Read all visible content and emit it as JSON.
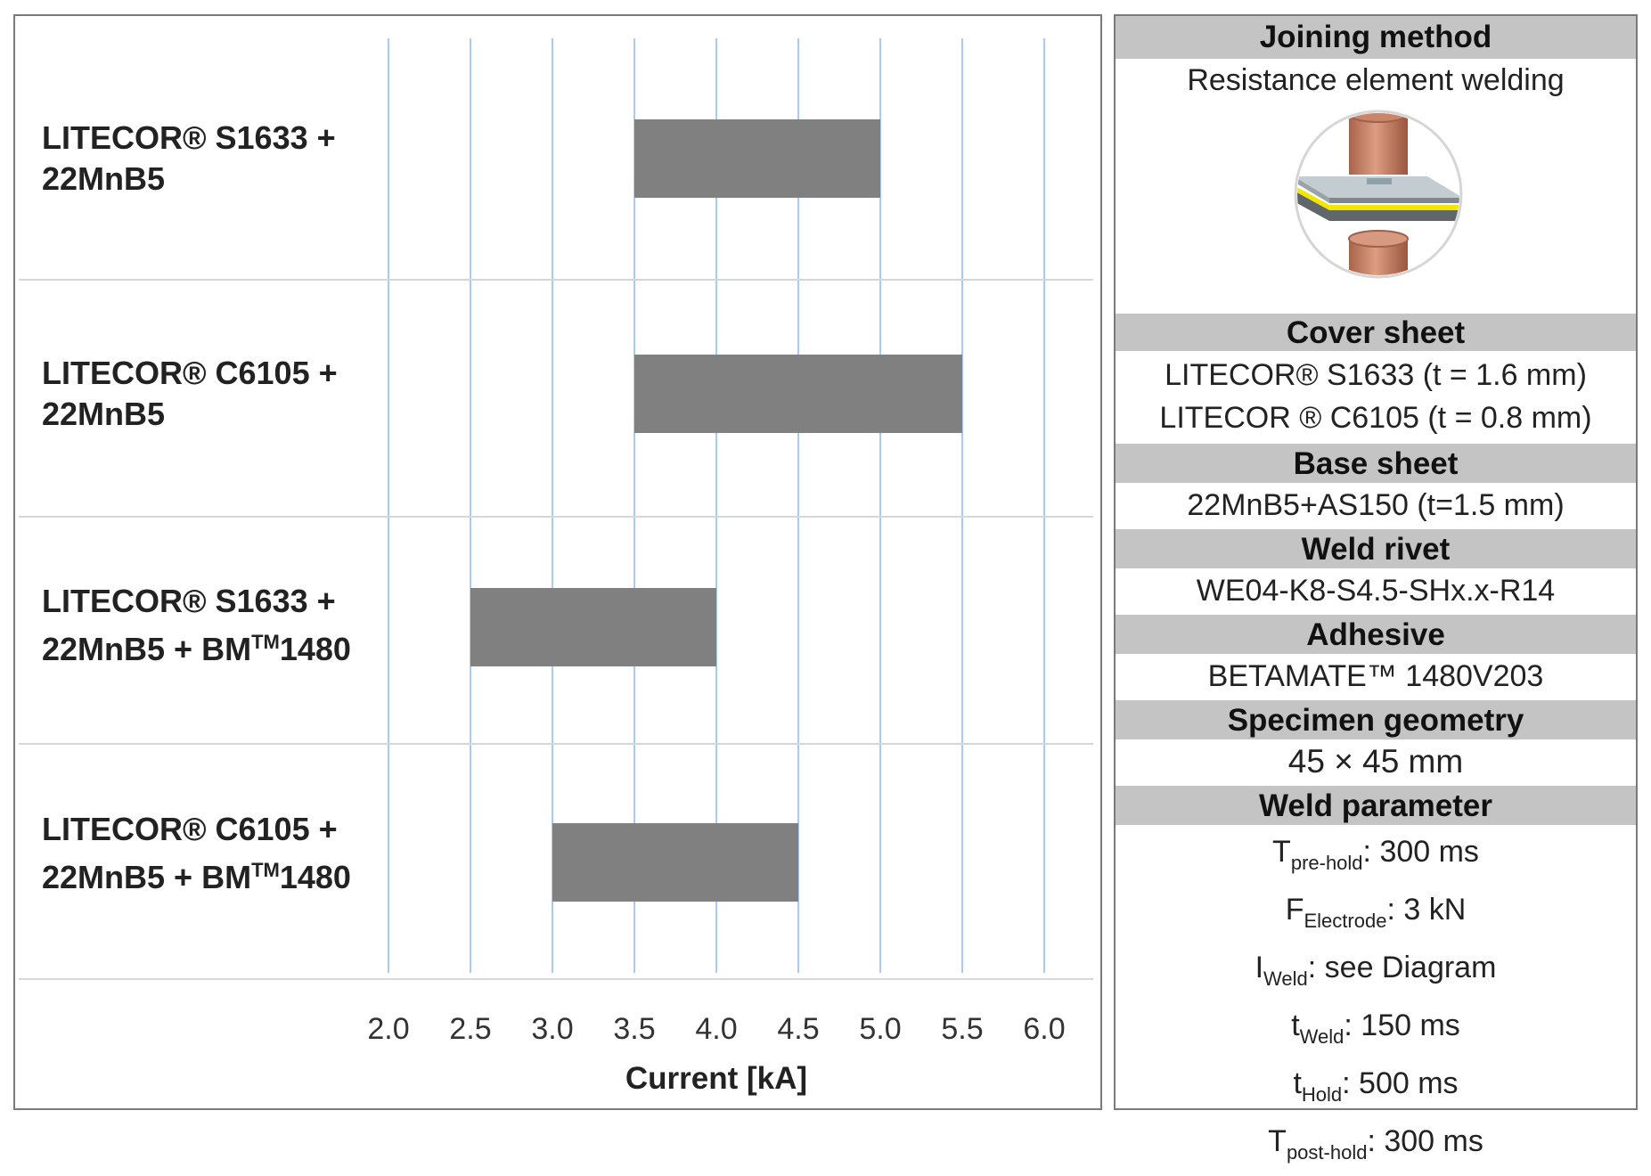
{
  "chart_data": {
    "type": "bar",
    "orientation": "horizontal-range",
    "categories": [
      {
        "line1": "LITECOR® S1633 +",
        "line2": "22MnB5",
        "sup": "",
        "line2_tail": ""
      },
      {
        "line1": "LITECOR® C6105 +",
        "line2": "22MnB5",
        "sup": "",
        "line2_tail": ""
      },
      {
        "line1": "LITECOR® S1633 +",
        "line2": "22MnB5 + BM",
        "sup": "TM",
        "line2_tail": "1480"
      },
      {
        "line1": "LITECOR® C6105 +",
        "line2": "22MnB5 + BM",
        "sup": "TM",
        "line2_tail": "1480"
      }
    ],
    "ranges": [
      [
        3.5,
        5.0
      ],
      [
        3.5,
        5.5
      ],
      [
        2.5,
        4.0
      ],
      [
        3.0,
        4.5
      ]
    ],
    "xlabel": "Current [kA]",
    "xlim": [
      2.0,
      6.0
    ],
    "xticks": [
      "2.0",
      "2.5",
      "3.0",
      "3.5",
      "4.0",
      "4.5",
      "5.0",
      "5.5",
      "6.0"
    ],
    "grid": true,
    "bar_color": "#808080",
    "grid_color": "#a9cbf0",
    "separator_color": "#d4d8dc"
  },
  "panel": {
    "joining_method": {
      "title": "Joining method",
      "value": "Resistance element welding"
    },
    "cover_sheet": {
      "title": "Cover sheet",
      "line1": "LITECOR®  S1633 (t = 1.6 mm)",
      "line2": "LITECOR ® C6105 (t = 0.8 mm)"
    },
    "base_sheet": {
      "title": "Base sheet",
      "value": "22MnB5+AS150 (t=1.5 mm)"
    },
    "weld_rivet": {
      "title": "Weld rivet",
      "value": "WE04-K8-S4.5-SHx.x-R14"
    },
    "adhesive": {
      "title": "Adhesive",
      "value": "BETAMATE™ 1480V203"
    },
    "specimen_geometry": {
      "title": "Specimen geometry",
      "value": "45 × 45 mm"
    },
    "weld_parameter": {
      "title": "Weld parameter",
      "params": [
        {
          "sym": "T",
          "sub": "pre-hold",
          "val": ": 300 ms"
        },
        {
          "sym": "F",
          "sub": "Electrode",
          "val": ": 3 kN"
        },
        {
          "sym": "I",
          "sub": "Weld",
          "val": ": see Diagram"
        },
        {
          "sym": "t",
          "sub": "Weld",
          "val": ": 150 ms"
        },
        {
          "sym": "t",
          "sub": "Hold",
          "val": ": 500 ms"
        },
        {
          "sym": "T",
          "sub": "post-hold",
          "val": ": 300 ms"
        }
      ]
    }
  },
  "colors": {
    "header_bg": "#c4c4c4",
    "frame": "#7a7a7a",
    "electrode": "#c9866a",
    "adhesive": "#f2e600",
    "sheet": "#b8c2c6"
  }
}
